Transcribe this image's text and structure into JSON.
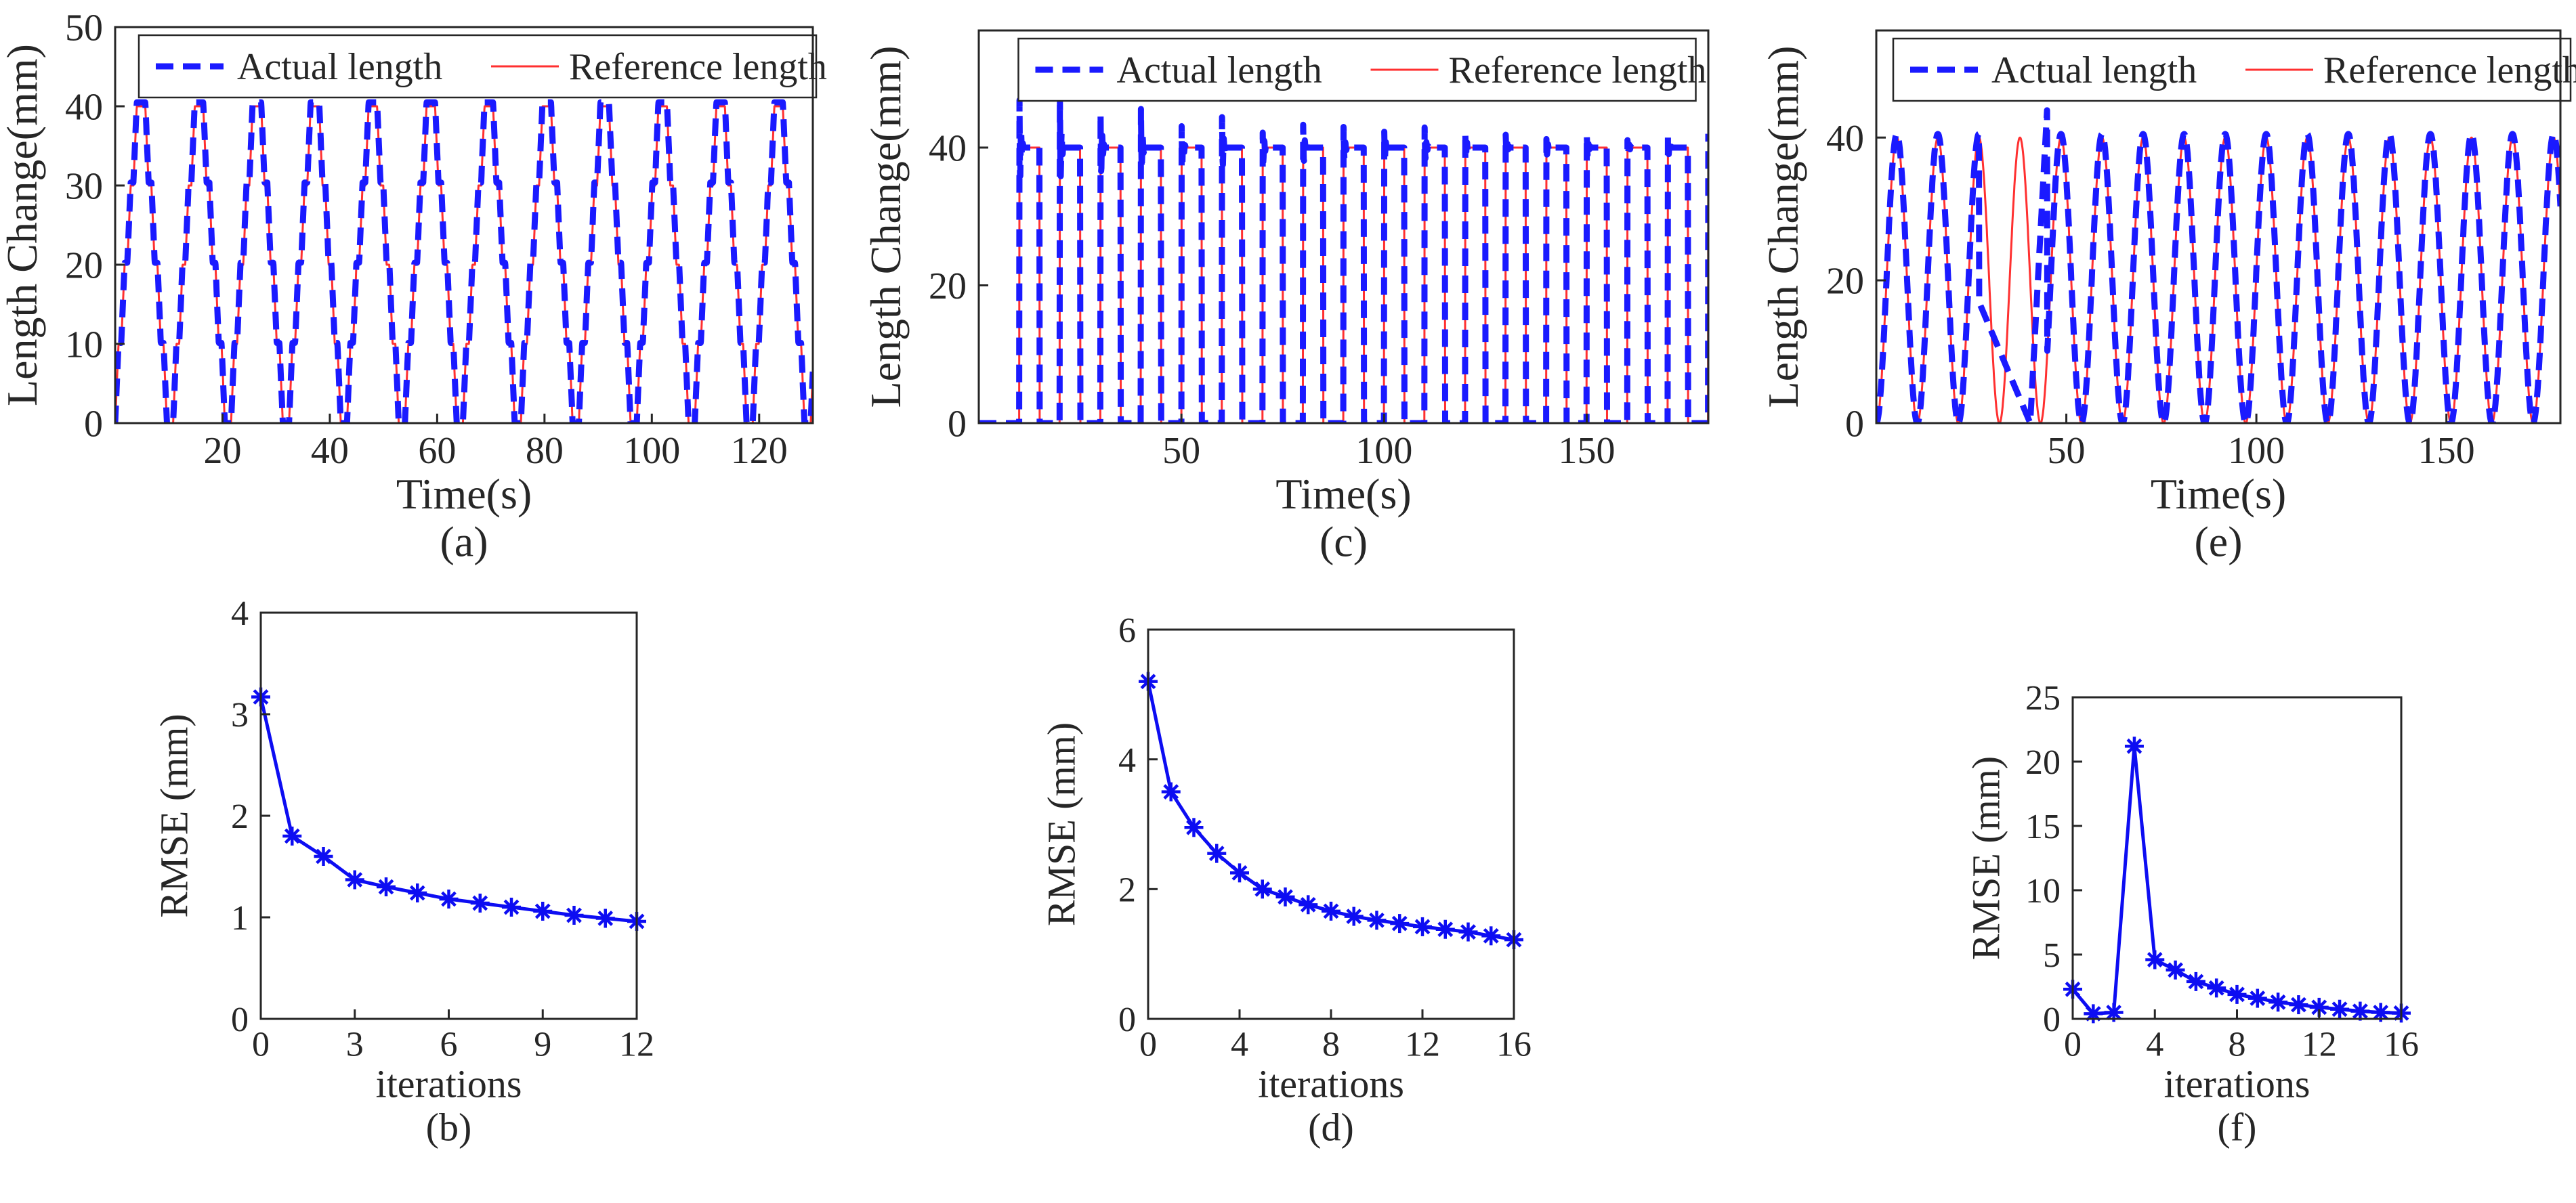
{
  "chart_data": [
    {
      "panel": "(a)",
      "type": "line",
      "xlabel": "Time(s)",
      "ylabel": "Length Change(mm)",
      "xlim": [
        0,
        130
      ],
      "ylim": [
        0,
        50
      ],
      "xticks": [
        20,
        40,
        60,
        80,
        100,
        120
      ],
      "yticks": [
        0,
        10,
        20,
        30,
        40,
        50
      ],
      "grid": false,
      "legend_position": "top",
      "colors": {
        "actual": "#1a1aff",
        "reference": "#ff3030"
      },
      "series": [
        {
          "name": "Actual length",
          "style": "dashed",
          "signal": "staircase",
          "period_s": 10.8,
          "cycles": 12,
          "min": 0,
          "max": 40.5,
          "steps": [
            10,
            20,
            30,
            40
          ]
        },
        {
          "name": "Reference length",
          "style": "solid",
          "signal": "staircase",
          "period_s": 10.8,
          "cycles": 12,
          "min": 0,
          "max": 40,
          "steps": [
            10,
            20,
            30,
            40
          ]
        }
      ]
    },
    {
      "panel": "(c)",
      "type": "line",
      "xlabel": "Time(s)",
      "ylabel": "Length Change(mm)",
      "xlim": [
        0,
        180
      ],
      "ylim": [
        0,
        57
      ],
      "xticks": [
        50,
        100,
        150
      ],
      "yticks": [
        0,
        20,
        40
      ],
      "grid": false,
      "legend_position": "top",
      "colors": {
        "actual": "#1a1aff",
        "reference": "#ff3030"
      },
      "series": [
        {
          "name": "Actual length",
          "style": "dashed",
          "signal": "square",
          "period_s": 10,
          "start_s": 10,
          "min": 0,
          "max": 40,
          "peak_overshoot": [
            49,
            48,
            47,
            46,
            45,
            45,
            44,
            44,
            43,
            43,
            43,
            43,
            42,
            42,
            42,
            42,
            42
          ]
        },
        {
          "name": "Reference length",
          "style": "solid",
          "signal": "square",
          "period_s": 10,
          "start_s": 10,
          "min": 0,
          "max": 40
        }
      ]
    },
    {
      "panel": "(e)",
      "type": "line",
      "xlabel": "Time(s)",
      "ylabel": "Length Change(mm)",
      "xlim": [
        0,
        180
      ],
      "ylim": [
        0,
        55
      ],
      "xticks": [
        50,
        100,
        150
      ],
      "yticks": [
        0,
        20,
        40
      ],
      "grid": false,
      "legend_position": "top",
      "colors": {
        "actual": "#1a1aff",
        "reference": "#ff3030"
      },
      "series": [
        {
          "name": "Actual length",
          "style": "dashed",
          "signal": "sine",
          "period_s": 10.8,
          "min": 0,
          "max": 40.5,
          "disturbance_s": [
            27,
            45
          ],
          "disturbance_peak": 44.5
        },
        {
          "name": "Reference length",
          "style": "solid",
          "signal": "sine",
          "period_s": 10.8,
          "min": 0,
          "max": 40
        }
      ]
    },
    {
      "panel": "(b)",
      "type": "line",
      "markers": "asterisk",
      "xlabel": "iterations",
      "ylabel": "RMSE (mm)",
      "xlim": [
        0,
        12
      ],
      "ylim": [
        0,
        4
      ],
      "xticks": [
        0,
        3,
        6,
        9,
        12
      ],
      "yticks": [
        0,
        1,
        2,
        3,
        4
      ],
      "grid": false,
      "colors": {
        "line": "#0d0df2"
      },
      "x": [
        0,
        1,
        2,
        3,
        4,
        5,
        6,
        7,
        8,
        9,
        10,
        11,
        12
      ],
      "y": [
        3.17,
        1.8,
        1.6,
        1.37,
        1.3,
        1.24,
        1.18,
        1.14,
        1.1,
        1.06,
        1.02,
        0.99,
        0.96
      ]
    },
    {
      "panel": "(d)",
      "type": "line",
      "markers": "asterisk",
      "xlabel": "iterations",
      "ylabel": "RMSE (mm)",
      "xlim": [
        0,
        16
      ],
      "ylim": [
        0,
        6
      ],
      "xticks": [
        0,
        4,
        8,
        12,
        16
      ],
      "yticks": [
        0,
        2,
        4,
        6
      ],
      "grid": false,
      "colors": {
        "line": "#0d0df2"
      },
      "x": [
        0,
        1,
        2,
        3,
        4,
        5,
        6,
        7,
        8,
        9,
        10,
        11,
        12,
        13,
        14,
        15,
        16
      ],
      "y": [
        5.2,
        3.5,
        2.95,
        2.55,
        2.25,
        2.0,
        1.88,
        1.76,
        1.66,
        1.58,
        1.52,
        1.47,
        1.42,
        1.38,
        1.34,
        1.28,
        1.22
      ]
    },
    {
      "panel": "(f)",
      "type": "line",
      "markers": "asterisk",
      "xlabel": "iterations",
      "ylabel": "RMSE (mm)",
      "xlim": [
        0,
        16
      ],
      "ylim": [
        0,
        25
      ],
      "xticks": [
        0,
        4,
        8,
        12,
        16
      ],
      "yticks": [
        0,
        5,
        10,
        15,
        20,
        25
      ],
      "grid": false,
      "colors": {
        "line": "#0d0df2"
      },
      "x": [
        0,
        1,
        2,
        3,
        4,
        5,
        6,
        7,
        8,
        9,
        10,
        11,
        12,
        13,
        14,
        15,
        16
      ],
      "y": [
        2.3,
        0.4,
        0.5,
        21.2,
        4.6,
        3.8,
        2.9,
        2.4,
        1.9,
        1.6,
        1.3,
        1.1,
        0.9,
        0.75,
        0.6,
        0.5,
        0.45
      ]
    }
  ]
}
